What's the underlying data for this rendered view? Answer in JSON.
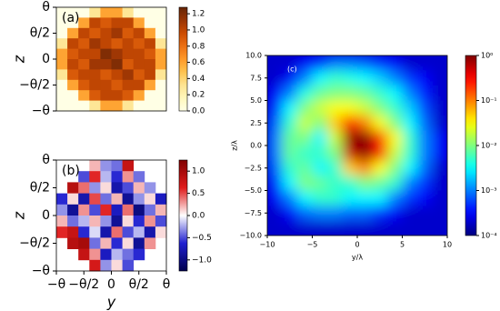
{
  "chart_data": [
    {
      "type": "heatmap",
      "label": "(a)",
      "ylabel": "z",
      "colormap": "YlOrBr",
      "xlim": [
        -1,
        1
      ],
      "ylim": [
        -1,
        1
      ],
      "yticks": [
        {
          "value": 1,
          "label": "θ"
        },
        {
          "value": 0.5,
          "label": "θ/2"
        },
        {
          "value": 0,
          "label": "0"
        },
        {
          "value": -0.5,
          "label": "−θ/2"
        },
        {
          "value": -1,
          "label": "−θ"
        }
      ],
      "z": [
        [
          0,
          0,
          0,
          0.3,
          0.6,
          0.6,
          0.3,
          0,
          0,
          0
        ],
        [
          0,
          0,
          0.6,
          1.0,
          0.9,
          1.0,
          1.0,
          0.6,
          0,
          0
        ],
        [
          0,
          0.6,
          1.0,
          0.9,
          1.0,
          1.1,
          0.9,
          1.0,
          0.6,
          0
        ],
        [
          0.3,
          1.0,
          0.9,
          1.1,
          1.0,
          0.9,
          1.0,
          0.9,
          1.0,
          0.3
        ],
        [
          0.6,
          0.9,
          1.0,
          1.0,
          1.2,
          1.1,
          1.0,
          1.0,
          0.9,
          0.6
        ],
        [
          0.6,
          1.0,
          0.9,
          1.1,
          1.1,
          1.2,
          0.9,
          1.0,
          1.0,
          0.6
        ],
        [
          0.3,
          0.9,
          1.0,
          1.0,
          0.9,
          1.0,
          1.1,
          0.9,
          1.0,
          0.3
        ],
        [
          0,
          0.6,
          0.9,
          1.0,
          1.0,
          0.9,
          1.0,
          1.0,
          0.6,
          0
        ],
        [
          0,
          0,
          0.6,
          0.9,
          1.0,
          1.0,
          0.9,
          0.6,
          0,
          0
        ],
        [
          0,
          0,
          0,
          0.3,
          0.6,
          0.6,
          0.3,
          0,
          0,
          0
        ]
      ],
      "clim": [
        0,
        1.28
      ],
      "cticks": [
        {
          "value": 0,
          "label": "0.0"
        },
        {
          "value": 0.2,
          "label": "0.2"
        },
        {
          "value": 0.4,
          "label": "0.4"
        },
        {
          "value": 0.6,
          "label": "0.6"
        },
        {
          "value": 0.8,
          "label": "0.8"
        },
        {
          "value": 1.0,
          "label": "1.0"
        },
        {
          "value": 1.2,
          "label": "1.2"
        }
      ]
    },
    {
      "type": "heatmap",
      "label": "(b)",
      "ylabel": "z",
      "xlabel": "y",
      "colormap": "seismic",
      "xlim": [
        -1,
        1
      ],
      "ylim": [
        -1,
        1
      ],
      "xticks": [
        {
          "value": -1,
          "label": "−θ"
        },
        {
          "value": -0.5,
          "label": "−θ/2"
        },
        {
          "value": 0,
          "label": "0"
        },
        {
          "value": 0.5,
          "label": "θ/2"
        },
        {
          "value": 1,
          "label": "θ"
        }
      ],
      "yticks": [
        {
          "value": 1,
          "label": "θ"
        },
        {
          "value": 0.5,
          "label": "θ/2"
        },
        {
          "value": 0,
          "label": "0"
        },
        {
          "value": -0.5,
          "label": "−θ/2"
        },
        {
          "value": -1,
          "label": "−θ"
        }
      ],
      "z": [
        [
          null,
          null,
          null,
          0.2,
          -0.3,
          -0.4,
          0.8,
          null,
          null,
          null
        ],
        [
          null,
          null,
          -0.5,
          0.6,
          -0.2,
          -0.6,
          0.3,
          -0.4,
          null,
          null
        ],
        [
          null,
          0.9,
          0.4,
          -0.3,
          0.1,
          -0.8,
          -0.5,
          0.2,
          -0.3,
          null
        ],
        [
          -0.6,
          0.1,
          -0.8,
          0.5,
          -0.4,
          0.2,
          -0.9,
          -0.3,
          0.1,
          -0.7
        ],
        [
          -0.3,
          -0.9,
          0.3,
          -0.5,
          0.6,
          -0.7,
          0.4,
          -1.0,
          -0.4,
          0.2
        ],
        [
          0.2,
          -0.4,
          -0.2,
          0.2,
          -0.3,
          -0.9,
          0.1,
          -0.6,
          0.3,
          -0.5
        ],
        [
          0.6,
          0.8,
          -0.6,
          -0.1,
          -0.8,
          0.4,
          -0.5,
          -0.2,
          -0.8,
          0.1
        ],
        [
          null,
          0.9,
          1.0,
          -0.4,
          0.2,
          -0.6,
          0.1,
          -0.9,
          0.3,
          null
        ],
        [
          null,
          null,
          0.8,
          0.3,
          -0.7,
          -0.2,
          -0.4,
          -0.6,
          null,
          null
        ],
        [
          null,
          null,
          null,
          0.7,
          -0.3,
          0.1,
          -0.5,
          null,
          null,
          null
        ]
      ],
      "clim": [
        -1.25,
        1.25
      ],
      "cticks": [
        {
          "value": 1.0,
          "label": "1.0"
        },
        {
          "value": 0.5,
          "label": "0.5"
        },
        {
          "value": 0,
          "label": "0.0"
        },
        {
          "value": -0.5,
          "label": "−0.5"
        },
        {
          "value": -1.0,
          "label": "−1.0"
        }
      ]
    },
    {
      "type": "heatmap",
      "label": "(c)",
      "ylabel": "z/λ",
      "xlabel": "y/λ",
      "colormap": "jet",
      "smooth": true,
      "xlim": [
        -10,
        10
      ],
      "ylim": [
        -10,
        10
      ],
      "xticks": [
        {
          "value": -10,
          "label": "−10"
        },
        {
          "value": -5,
          "label": "−5"
        },
        0,
        5,
        10
      ],
      "yticks": [
        {
          "value": 10,
          "label": "10.0"
        },
        {
          "value": 7.5,
          "label": "7.5"
        },
        {
          "value": 5,
          "label": "5.0"
        },
        {
          "value": 2.5,
          "label": "2.5"
        },
        {
          "value": 0,
          "label": "0.0"
        },
        {
          "value": -2.5,
          "label": "−2.5"
        },
        {
          "value": -5,
          "label": "−5.0"
        },
        {
          "value": -7.5,
          "label": "−7.5"
        },
        {
          "value": -10,
          "label": "−10.0"
        }
      ],
      "z": [
        [
          0.0002,
          0.0002,
          0.0003,
          0.0005,
          0.001,
          0.001,
          0.0008,
          0.0005,
          0.0003,
          0.0002,
          0.0002,
          0.0002
        ],
        [
          0.0002,
          0.0003,
          0.001,
          0.003,
          0.005,
          0.004,
          0.003,
          0.002,
          0.001,
          0.0005,
          0.0003,
          0.0002
        ],
        [
          0.0003,
          0.001,
          0.004,
          0.008,
          0.01,
          0.01,
          0.008,
          0.005,
          0.003,
          0.001,
          0.0004,
          0.0002
        ],
        [
          0.0005,
          0.003,
          0.01,
          0.02,
          0.03,
          0.03,
          0.02,
          0.01,
          0.005,
          0.002,
          0.0006,
          0.0002
        ],
        [
          0.0008,
          0.005,
          0.02,
          0.01,
          0.05,
          0.3,
          0.1,
          0.03,
          0.01,
          0.003,
          0.0008,
          0.0002
        ],
        [
          0.001,
          0.008,
          0.01,
          0.003,
          0.02,
          0.8,
          1,
          0.2,
          0.03,
          0.005,
          0.001,
          0.0003
        ],
        [
          0.001,
          0.008,
          0.005,
          0.005,
          0.01,
          0.5,
          0.9,
          0.3,
          0.02,
          0.005,
          0.001,
          0.0003
        ],
        [
          0.0008,
          0.005,
          0.008,
          0.003,
          0.005,
          0.05,
          0.1,
          0.03,
          0.01,
          0.003,
          0.0008,
          0.0002
        ],
        [
          0.0005,
          0.003,
          0.01,
          0.008,
          0.005,
          0.005,
          0.01,
          0.008,
          0.005,
          0.001,
          0.0005,
          0.0002
        ],
        [
          0.0003,
          0.001,
          0.003,
          0.005,
          0.005,
          0.003,
          0.003,
          0.003,
          0.001,
          0.0005,
          0.0003,
          0.0002
        ],
        [
          0.0002,
          0.0003,
          0.0008,
          0.001,
          0.001,
          0.0008,
          0.0008,
          0.0005,
          0.0003,
          0.0002,
          0.0002,
          0.0002
        ],
        [
          0.0002,
          0.0002,
          0.0002,
          0.0002,
          0.0002,
          0.0002,
          0.0002,
          0.0002,
          0.0002,
          0.0002,
          0.0002,
          0.0002
        ]
      ],
      "clim": [
        0.0001,
        1
      ],
      "clog": true,
      "cticks": [
        {
          "value": 1,
          "label": "10⁰"
        },
        {
          "value": 0.1,
          "label": "10⁻¹"
        },
        {
          "value": 0.01,
          "label": "10⁻²"
        },
        {
          "value": 0.001,
          "label": "10⁻³"
        },
        {
          "value": 0.0001,
          "label": "10⁻⁴"
        }
      ]
    }
  ]
}
